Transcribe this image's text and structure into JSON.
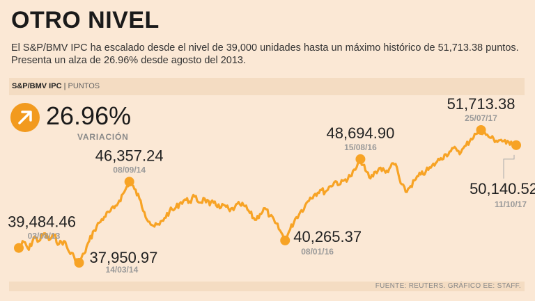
{
  "header": {
    "title": "OTRO NIVEL",
    "subtitle": "El S&P/BMV IPC ha escalado desde el nivel de 39,000 unidades hasta un máximo histórico de 51,713.38 puntos. Presenta un alza de 26.96% desde agosto del 2013."
  },
  "chart_bar": {
    "index_label": "S&P/BMV IPC",
    "separator": "|",
    "unit_label": "PUNTOS"
  },
  "variation": {
    "value": "26.96%",
    "label": "VARIACIÓN",
    "icon": "arrow-up-right-icon"
  },
  "colors": {
    "line": "#f7a325",
    "accent": "#f29a1e",
    "background": "#fbe8d5"
  },
  "footer": {
    "source": "FUENTE: REUTERS. GRÁFICO EE: STAFF."
  },
  "chart_data": {
    "type": "line",
    "title": "S&P/BMV IPC | PUNTOS",
    "xlabel": "",
    "ylabel": "Puntos",
    "ylim": [
      37000,
      53000
    ],
    "series": [
      {
        "name": "S&P/BMV IPC",
        "values": [
          39484.46,
          40100,
          39300,
          40600,
          40200,
          41000,
          40300,
          40800,
          39900,
          40200,
          39100,
          38600,
          37950.97,
          38900,
          40200,
          41300,
          42100,
          42700,
          43200,
          43600,
          44400,
          45300,
          46357.24,
          45600,
          44600,
          43200,
          42200,
          41700,
          41900,
          42600,
          43300,
          43500,
          44100,
          44500,
          44300,
          44800,
          44200,
          44600,
          43900,
          44300,
          43600,
          43900,
          43300,
          43700,
          44000,
          43800,
          43100,
          42400,
          43000,
          43600,
          42800,
          42100,
          41300,
          40265.37,
          41400,
          42500,
          43200,
          43900,
          44700,
          45100,
          45500,
          45300,
          45900,
          46400,
          46100,
          46600,
          46900,
          47600,
          48694.9,
          47500,
          46700,
          47400,
          47800,
          47300,
          47900,
          48200,
          46200,
          45300,
          45900,
          46600,
          47100,
          47400,
          47800,
          48300,
          48800,
          49200,
          49500,
          49800,
          49400,
          50100,
          50800,
          51300,
          51713.38,
          51200,
          50900,
          50600,
          50700,
          50300,
          50500,
          50140.52
        ]
      }
    ],
    "annotations": [
      {
        "label": "39,484.46",
        "date": "03/08/13",
        "index": 0,
        "placement": "above"
      },
      {
        "label": "37,950.97",
        "date": "14/03/14",
        "index": 12,
        "placement": "right-below"
      },
      {
        "label": "46,357.24",
        "date": "08/09/14",
        "index": 22,
        "placement": "above"
      },
      {
        "label": "40,265.37",
        "date": "08/01/16",
        "index": 53,
        "placement": "right-below"
      },
      {
        "label": "48,694.90",
        "date": "15/08/16",
        "index": 68,
        "placement": "above"
      },
      {
        "label": "51,713.38",
        "date": "25/07/17",
        "index": 92,
        "placement": "above"
      },
      {
        "label": "50,140.52",
        "date": "11/10/17",
        "index": 99,
        "placement": "below"
      }
    ]
  }
}
